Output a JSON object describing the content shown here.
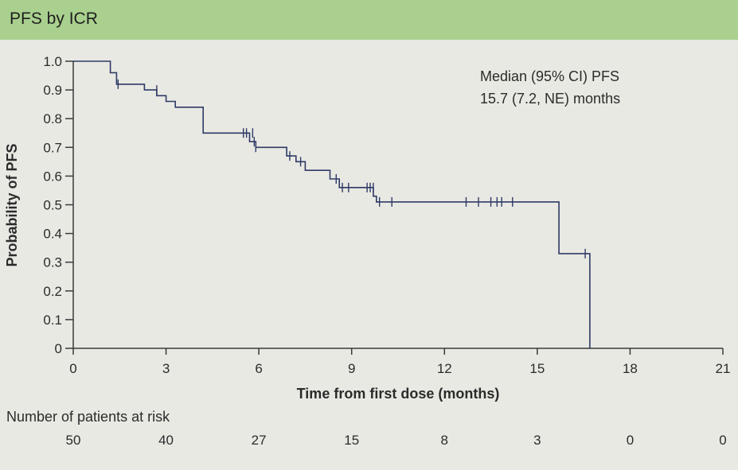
{
  "header": {
    "title": "PFS by ICR"
  },
  "chart_data": {
    "type": "line",
    "subtype": "kaplan-meier",
    "xlabel": "Time from first dose (months)",
    "ylabel": "Probability of PFS",
    "xlim": [
      0,
      21
    ],
    "ylim": [
      0,
      1.0
    ],
    "x_ticks": [
      0,
      3,
      6,
      9,
      12,
      15,
      18,
      21
    ],
    "y_ticks": [
      0,
      0.1,
      0.2,
      0.3,
      0.4,
      0.5,
      0.6,
      0.7,
      0.8,
      0.9,
      1.0
    ],
    "y_tick_labels": [
      "0",
      "0.1",
      "0.2",
      "0.3",
      "0.4",
      "0.5",
      "0.6",
      "0.7",
      "0.8",
      "0.9",
      "1.0"
    ],
    "grid": false,
    "line_color": "#2e3a66",
    "annotation": [
      "Median (95% CI) PFS",
      "15.7 (7.2, NE) months"
    ],
    "series": [
      {
        "steps": [
          [
            0,
            1.0
          ],
          [
            1.2,
            1.0
          ],
          [
            1.2,
            0.96
          ],
          [
            1.4,
            0.96
          ],
          [
            1.4,
            0.92
          ],
          [
            2.3,
            0.92
          ],
          [
            2.3,
            0.9
          ],
          [
            2.7,
            0.9
          ],
          [
            2.7,
            0.88
          ],
          [
            3.0,
            0.88
          ],
          [
            3.0,
            0.86
          ],
          [
            3.3,
            0.86
          ],
          [
            3.3,
            0.84
          ],
          [
            4.2,
            0.84
          ],
          [
            4.2,
            0.75
          ],
          [
            5.7,
            0.75
          ],
          [
            5.7,
            0.72
          ],
          [
            5.9,
            0.72
          ],
          [
            5.9,
            0.7
          ],
          [
            6.9,
            0.7
          ],
          [
            6.9,
            0.67
          ],
          [
            7.2,
            0.67
          ],
          [
            7.2,
            0.65
          ],
          [
            7.5,
            0.65
          ],
          [
            7.5,
            0.62
          ],
          [
            8.3,
            0.62
          ],
          [
            8.3,
            0.59
          ],
          [
            8.6,
            0.59
          ],
          [
            8.6,
            0.56
          ],
          [
            9.7,
            0.56
          ],
          [
            9.7,
            0.53
          ],
          [
            9.8,
            0.53
          ],
          [
            9.8,
            0.51
          ],
          [
            15.7,
            0.51
          ],
          [
            15.7,
            0.33
          ],
          [
            16.7,
            0.33
          ],
          [
            16.7,
            0.0
          ]
        ],
        "censored": [
          [
            1.45,
            0.92
          ],
          [
            2.7,
            0.9
          ],
          [
            5.5,
            0.75
          ],
          [
            5.6,
            0.75
          ],
          [
            5.8,
            0.75
          ],
          [
            5.85,
            0.72
          ],
          [
            5.9,
            0.7
          ],
          [
            7.0,
            0.67
          ],
          [
            7.35,
            0.65
          ],
          [
            8.5,
            0.59
          ],
          [
            8.7,
            0.56
          ],
          [
            8.9,
            0.56
          ],
          [
            9.5,
            0.56
          ],
          [
            9.6,
            0.56
          ],
          [
            9.7,
            0.56
          ],
          [
            9.9,
            0.51
          ],
          [
            10.3,
            0.51
          ],
          [
            12.7,
            0.51
          ],
          [
            13.1,
            0.51
          ],
          [
            13.5,
            0.51
          ],
          [
            13.7,
            0.51
          ],
          [
            13.85,
            0.51
          ],
          [
            14.2,
            0.51
          ],
          [
            16.55,
            0.33
          ]
        ]
      }
    ],
    "risk_table": {
      "title": "Number of patients at risk",
      "times": [
        0,
        3,
        6,
        9,
        12,
        15,
        18,
        21
      ],
      "counts": [
        "50",
        "40",
        "27",
        "15",
        "8",
        "3",
        "0",
        "0"
      ]
    }
  }
}
